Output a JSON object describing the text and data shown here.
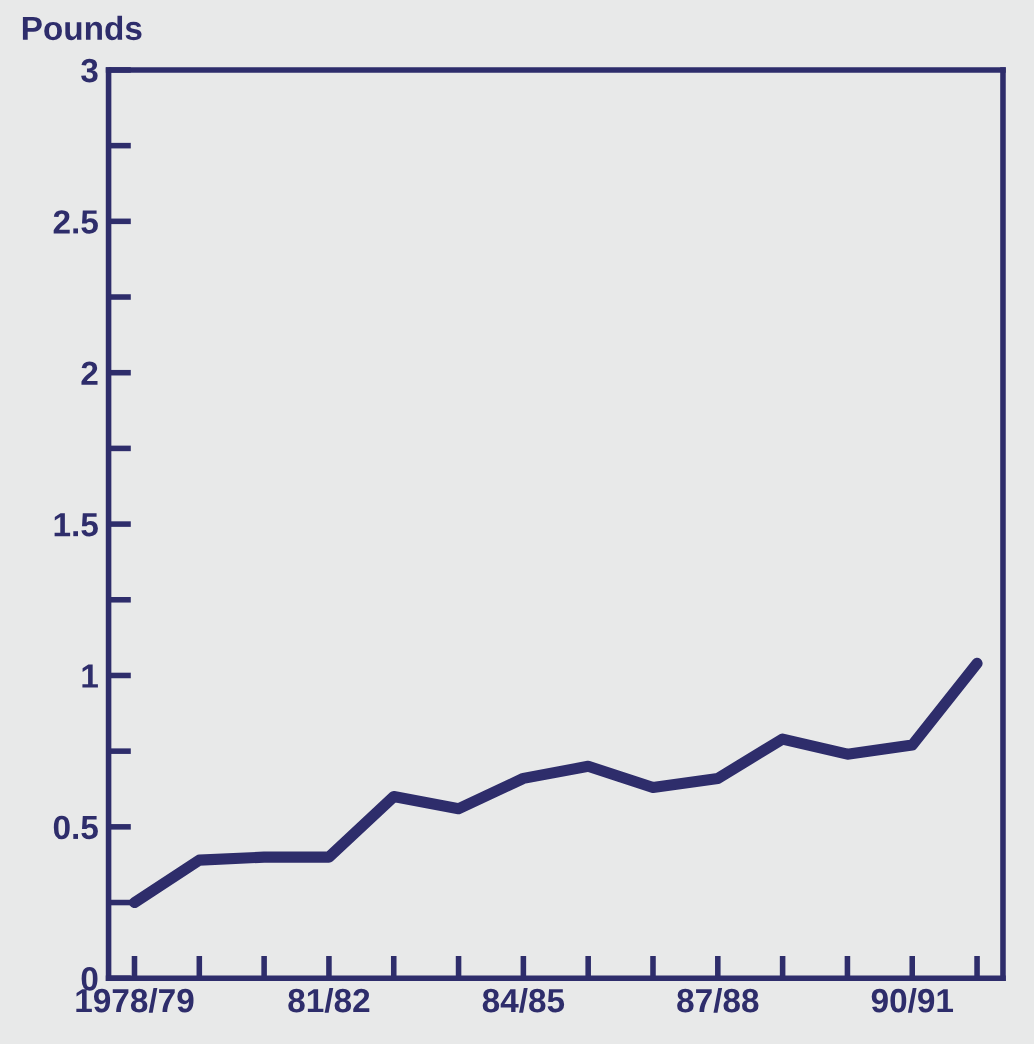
{
  "chart_data": {
    "type": "line",
    "ylabel": "Pounds",
    "categories": [
      "1978/79",
      null,
      null,
      "81/82",
      null,
      null,
      "84/85",
      null,
      null,
      "87/88",
      null,
      null,
      "90/91",
      null
    ],
    "series": [
      {
        "color": "#2e2d6b",
        "values": [
          0.25,
          0.39,
          0.4,
          0.4,
          0.6,
          0.56,
          0.66,
          0.7,
          0.63,
          0.66,
          0.79,
          0.74,
          0.77,
          1.04
        ]
      }
    ],
    "ylim": [
      0,
      3
    ],
    "yticks": [
      0,
      {
        "value": 0.25,
        "label": null
      },
      0.5,
      {
        "value": 0.75,
        "label": null
      },
      1,
      {
        "value": 1.25,
        "label": null
      },
      1.5,
      {
        "value": 1.75,
        "label": null
      },
      2,
      {
        "value": 2.25,
        "label": null
      },
      2.5,
      {
        "value": 2.75,
        "label": null
      },
      3
    ],
    "grid": false,
    "legend": false,
    "marker": "none",
    "line_style": "solid"
  }
}
